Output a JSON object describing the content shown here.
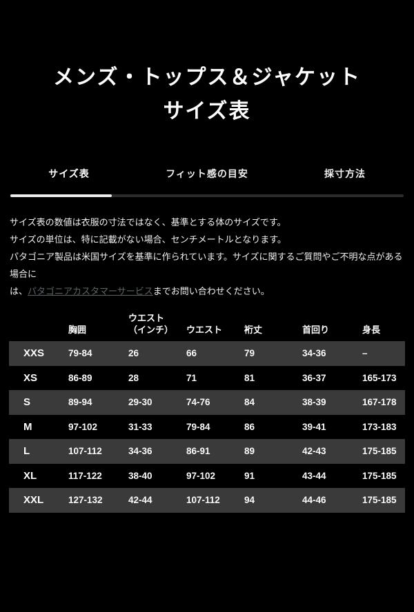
{
  "title": {
    "line1": "メンズ・トップス＆ジャケット",
    "line2": "サイズ表"
  },
  "tabs": [
    {
      "label": "サイズ表",
      "active": true
    },
    {
      "label": "フィット感の目安",
      "active": false
    },
    {
      "label": "採寸方法",
      "active": false
    }
  ],
  "note": {
    "line1": "サイズ表の数値は衣服の寸法ではなく、基準とする体のサイズです。",
    "line2": "サイズの単位は、特に記載がない場合、センチメートルとなります。",
    "line3": "パタゴニア製品は米国サイズを基準に作られています。サイズに関するご質問やご不明な点がある場合に",
    "line4_before": "は、",
    "line4_link": "パタゴニアカスタマーサービス",
    "line4_after": "までお問い合わせください。"
  },
  "size_table": {
    "columns": [
      "",
      "胸囲",
      "ウエスト\n（インチ）",
      "ウエスト",
      "裄丈",
      "首回り",
      "身長"
    ],
    "rows": [
      {
        "size": "XXS",
        "chest": "79-84",
        "waist_inch": "26",
        "waist": "66",
        "sleeve": "79",
        "neck": "34-36",
        "height": "–"
      },
      {
        "size": "XS",
        "chest": "86-89",
        "waist_inch": "28",
        "waist": "71",
        "sleeve": "81",
        "neck": "36-37",
        "height": "165-173"
      },
      {
        "size": "S",
        "chest": "89-94",
        "waist_inch": "29-30",
        "waist": "74-76",
        "sleeve": "84",
        "neck": "38-39",
        "height": "167-178"
      },
      {
        "size": "M",
        "chest": "97-102",
        "waist_inch": "31-33",
        "waist": "79-84",
        "sleeve": "86",
        "neck": "39-41",
        "height": "173-183"
      },
      {
        "size": "L",
        "chest": "107-112",
        "waist_inch": "34-36",
        "waist": "86-91",
        "sleeve": "89",
        "neck": "42-43",
        "height": "175-185"
      },
      {
        "size": "XL",
        "chest": "117-122",
        "waist_inch": "38-40",
        "waist": "97-102",
        "sleeve": "91",
        "neck": "43-44",
        "height": "175-185"
      },
      {
        "size": "XXL",
        "chest": "127-132",
        "waist_inch": "42-44",
        "waist": "107-112",
        "sleeve": "94",
        "neck": "44-46",
        "height": "175-185"
      }
    ]
  },
  "colors": {
    "background": "#000000",
    "stripe_row": "#3a3a3a",
    "tab_track": "#2c2c2c",
    "tab_indicator": "#ececec",
    "link": "#5d6366",
    "text": "#f5f5f5"
  }
}
